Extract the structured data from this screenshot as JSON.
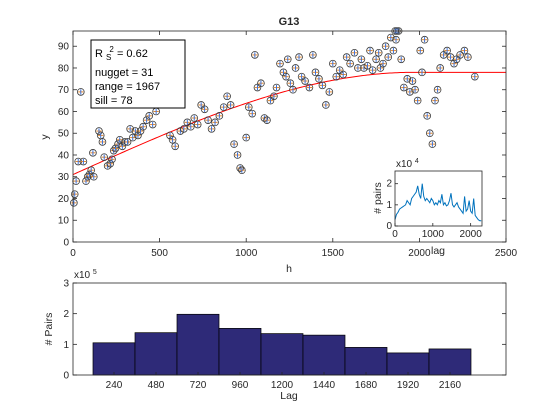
{
  "chart_data": [
    {
      "type": "scatter",
      "title": "G13",
      "xlabel": "h",
      "ylabel": "y",
      "xlim": [
        0,
        2500
      ],
      "ylim": [
        0,
        97
      ],
      "xticks": [
        0,
        500,
        1000,
        1500,
        2000,
        2500
      ],
      "yticks": [
        0,
        10,
        20,
        30,
        40,
        50,
        60,
        70,
        80,
        90
      ],
      "points": [
        [
          5,
          18
        ],
        [
          10,
          22
        ],
        [
          18,
          28
        ],
        [
          30,
          37
        ],
        [
          45,
          69
        ],
        [
          60,
          37
        ],
        [
          75,
          28
        ],
        [
          85,
          30
        ],
        [
          95,
          31
        ],
        [
          105,
          33
        ],
        [
          115,
          41
        ],
        [
          120,
          30
        ],
        [
          150,
          51
        ],
        [
          160,
          49
        ],
        [
          170,
          46
        ],
        [
          180,
          39
        ],
        [
          200,
          35
        ],
        [
          215,
          36
        ],
        [
          225,
          38
        ],
        [
          235,
          42
        ],
        [
          245,
          43
        ],
        [
          260,
          45
        ],
        [
          270,
          47
        ],
        [
          285,
          44
        ],
        [
          300,
          46
        ],
        [
          315,
          46
        ],
        [
          330,
          52
        ],
        [
          345,
          48
        ],
        [
          360,
          51
        ],
        [
          375,
          49
        ],
        [
          390,
          51
        ],
        [
          405,
          53
        ],
        [
          425,
          56
        ],
        [
          440,
          58
        ],
        [
          460,
          54
        ],
        [
          480,
          60
        ],
        [
          510,
          64
        ],
        [
          530,
          73
        ],
        [
          560,
          49
        ],
        [
          575,
          47
        ],
        [
          590,
          44
        ],
        [
          620,
          51
        ],
        [
          640,
          52
        ],
        [
          660,
          55
        ],
        [
          680,
          53
        ],
        [
          700,
          57
        ],
        [
          720,
          54
        ],
        [
          740,
          63
        ],
        [
          760,
          61
        ],
        [
          780,
          56
        ],
        [
          800,
          52
        ],
        [
          820,
          55
        ],
        [
          845,
          58
        ],
        [
          870,
          62
        ],
        [
          890,
          67
        ],
        [
          910,
          63
        ],
        [
          930,
          45
        ],
        [
          950,
          40
        ],
        [
          965,
          34
        ],
        [
          975,
          33
        ],
        [
          1000,
          48
        ],
        [
          1015,
          62
        ],
        [
          1035,
          59
        ],
        [
          1050,
          86
        ],
        [
          1065,
          71
        ],
        [
          1085,
          73
        ],
        [
          1105,
          57
        ],
        [
          1120,
          56
        ],
        [
          1140,
          65
        ],
        [
          1160,
          67
        ],
        [
          1175,
          71
        ],
        [
          1195,
          82
        ],
        [
          1215,
          78
        ],
        [
          1230,
          76
        ],
        [
          1240,
          84
        ],
        [
          1255,
          73
        ],
        [
          1270,
          70
        ],
        [
          1285,
          80
        ],
        [
          1305,
          85
        ],
        [
          1320,
          76
        ],
        [
          1340,
          74
        ],
        [
          1365,
          71
        ],
        [
          1385,
          86
        ],
        [
          1400,
          78
        ],
        [
          1420,
          75
        ],
        [
          1440,
          72
        ],
        [
          1460,
          63
        ],
        [
          1480,
          69
        ],
        [
          1500,
          82
        ],
        [
          1520,
          76
        ],
        [
          1540,
          79
        ],
        [
          1560,
          77
        ],
        [
          1580,
          85
        ],
        [
          1600,
          82
        ],
        [
          1625,
          87
        ],
        [
          1645,
          80
        ],
        [
          1665,
          84
        ],
        [
          1680,
          80
        ],
        [
          1700,
          81
        ],
        [
          1715,
          88
        ],
        [
          1730,
          79
        ],
        [
          1750,
          84
        ],
        [
          1765,
          87
        ],
        [
          1775,
          80
        ],
        [
          1790,
          82
        ],
        [
          1805,
          90
        ],
        [
          1820,
          85
        ],
        [
          1835,
          94
        ],
        [
          1850,
          88
        ],
        [
          1865,
          93
        ],
        [
          1880,
          97
        ],
        [
          1895,
          84
        ],
        [
          1910,
          71
        ],
        [
          1930,
          75
        ],
        [
          1945,
          69
        ],
        [
          1960,
          74
        ],
        [
          1975,
          70
        ],
        [
          1990,
          65
        ],
        [
          2005,
          88
        ],
        [
          2015,
          78
        ],
        [
          2030,
          93
        ],
        [
          2045,
          58
        ],
        [
          2060,
          50
        ],
        [
          2075,
          45
        ],
        [
          2090,
          65
        ],
        [
          2105,
          70
        ],
        [
          2120,
          80
        ],
        [
          2140,
          86
        ],
        [
          2160,
          88
        ],
        [
          2180,
          85
        ],
        [
          2200,
          82
        ],
        [
          2215,
          84
        ],
        [
          2235,
          86
        ],
        [
          2260,
          88
        ],
        [
          2280,
          85
        ],
        [
          2320,
          76
        ],
        [
          1860,
          97
        ],
        [
          1870,
          97
        ]
      ],
      "model_curve": {
        "name": "spherical variogram fit",
        "nugget": 31,
        "range": 1967,
        "sill": 78,
        "color": "#ff0000"
      },
      "marker_colors": {
        "edge": "#3c3c3c",
        "fill": "#e8882a",
        "plus": "#3a6fd8"
      },
      "stats_box": {
        "r_label": "R",
        "r_sup": "2",
        "r_sub": "S",
        "r_value": " = 0.62",
        "nugget": "nugget = 31",
        "range": "range = 1967",
        "sill": "sill = 78"
      },
      "grid": false,
      "legend": "none"
    },
    {
      "type": "line",
      "inset": true,
      "xlabel": "lag",
      "ylabel": "# pairs",
      "exponent_label": "x10",
      "exponent_power": "4",
      "xlim": [
        0,
        2300
      ],
      "ylim": [
        0,
        2.6
      ],
      "xticks": [
        0,
        1000,
        2000
      ],
      "yticks": [
        0,
        1,
        2
      ],
      "color": "#0072bd",
      "x": [
        0,
        40,
        80,
        120,
        160,
        200,
        240,
        280,
        320,
        360,
        400,
        440,
        480,
        520,
        560,
        600,
        640,
        680,
        720,
        760,
        800,
        840,
        880,
        920,
        960,
        1000,
        1040,
        1080,
        1120,
        1160,
        1200,
        1240,
        1280,
        1320,
        1360,
        1400,
        1440,
        1480,
        1520,
        1560,
        1600,
        1640,
        1680,
        1720,
        1760,
        1800,
        1840,
        1880,
        1920,
        1960,
        2000,
        2040,
        2080,
        2120,
        2160,
        2200,
        2240,
        2280
      ],
      "y": [
        0.3,
        0.55,
        0.65,
        0.8,
        0.85,
        0.9,
        0.95,
        1.0,
        1.2,
        1.1,
        1.0,
        1.3,
        1.4,
        1.5,
        1.6,
        1.9,
        1.5,
        1.3,
        2.0,
        1.4,
        1.2,
        1.3,
        1.2,
        1.1,
        1.3,
        1.2,
        1.0,
        1.1,
        1.0,
        1.2,
        1.1,
        1.5,
        1.0,
        1.1,
        0.95,
        1.0,
        1.2,
        1.55,
        1.0,
        0.9,
        1.0,
        1.1,
        0.9,
        0.8,
        0.7,
        0.6,
        1.4,
        0.7,
        0.8,
        1.2,
        0.7,
        0.6,
        1.3,
        0.5,
        0.4,
        0.3,
        0.25,
        0.25
      ]
    },
    {
      "type": "bar",
      "xlabel": "Lag",
      "ylabel": "# Pairs",
      "exponent_label": "x10",
      "exponent_power": "5",
      "categories": [
        "240",
        "480",
        "720",
        "960",
        "1200",
        "1440",
        "1680",
        "1920",
        "2160"
      ],
      "values": [
        1.05,
        1.38,
        1.98,
        1.52,
        1.35,
        1.3,
        0.9,
        0.72,
        0.85
      ],
      "ylim": [
        0,
        3
      ],
      "yticks": [
        0,
        1,
        2,
        3
      ],
      "bar_color": "#2e2a78",
      "grid": false
    }
  ]
}
